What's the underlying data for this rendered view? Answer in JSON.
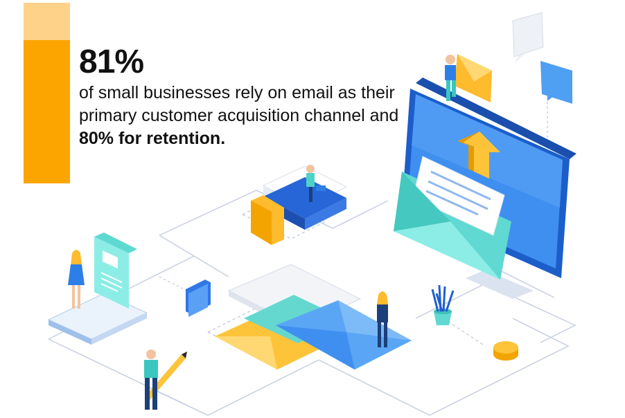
{
  "headline": {
    "stat": "81%"
  },
  "body": {
    "text": "of small businesses rely on email as their primary customer acquisition channel and",
    "emphasis": "80% for retention."
  },
  "colors": {
    "accent_orange": "#fca500",
    "accent_light_orange": "#ffd28a",
    "screen_blue": "#2d7fe8",
    "envelope_teal": "#7ee5dd",
    "line_gray": "#c6cfe0"
  },
  "icons": [
    "monitor-icon",
    "envelope-icon",
    "upload-arrow-icon",
    "chat-bubble-icon",
    "books-icon",
    "folder-icon",
    "tablet-icon",
    "plant-icon",
    "coin-icon",
    "pencil-icon",
    "person-icon"
  ]
}
